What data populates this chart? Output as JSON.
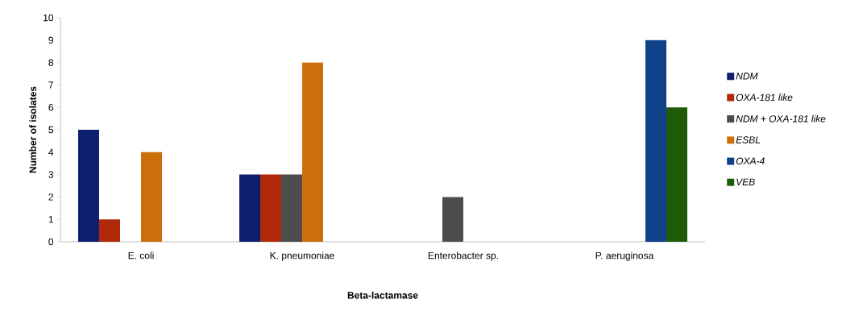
{
  "chart_data": {
    "type": "bar",
    "xlabel": "Beta-lactamase",
    "ylabel": "Number of isolates",
    "categories": [
      "E. coli",
      "K. pneumoniae",
      "Enterobacter sp.",
      "P. aeruginosa"
    ],
    "series": [
      {
        "name": "*NDM*",
        "color": "#0d1f6e",
        "values": [
          5,
          3,
          0,
          0
        ]
      },
      {
        "name": "*OXA-181 like*",
        "color": "#b0290b",
        "values": [
          1,
          3,
          0,
          0
        ]
      },
      {
        "name": "*NDM + OXA-181 like*",
        "color": "#4d4d4d",
        "values": [
          0,
          3,
          2,
          0
        ]
      },
      {
        "name": "*ESBL*",
        "color": "#cc6f0a",
        "values": [
          4,
          8,
          0,
          0
        ]
      },
      {
        "name": "*OXA-4*",
        "color": "#0f4289",
        "values": [
          0,
          0,
          0,
          9
        ]
      },
      {
        "name": "*VEB*",
        "color": "#1e5c0a",
        "values": [
          0,
          0,
          0,
          6
        ]
      }
    ],
    "ylim": [
      0,
      10
    ],
    "yticks": [
      0,
      1,
      2,
      3,
      4,
      5,
      6,
      7,
      8,
      9,
      10
    ],
    "grid": false,
    "legend": "right"
  }
}
